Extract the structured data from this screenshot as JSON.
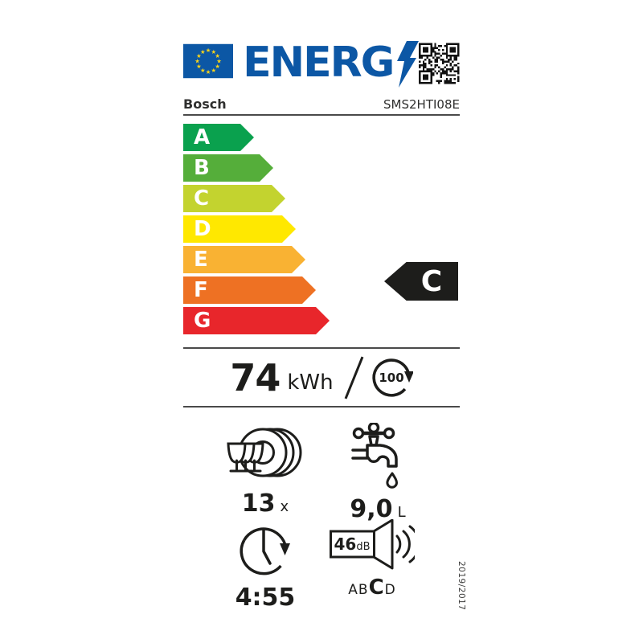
{
  "header": {
    "logo_text": "ENERG",
    "brand": "Bosch",
    "model": "SMS2HTI08E"
  },
  "colors": {
    "eu_blue": "#0c57a5",
    "star_yellow": "#ffd617",
    "indicator_black": "#1d1d1b",
    "text": "#1d1d1b"
  },
  "scale": {
    "grades": [
      {
        "letter": "A",
        "color": "#0aa14e"
      },
      {
        "letter": "B",
        "color": "#55ae3a"
      },
      {
        "letter": "C",
        "color": "#c3d32f"
      },
      {
        "letter": "D",
        "color": "#ffe800"
      },
      {
        "letter": "E",
        "color": "#f9b233"
      },
      {
        "letter": "F",
        "color": "#ee7123"
      },
      {
        "letter": "G",
        "color": "#e8262b"
      }
    ],
    "rating": "C"
  },
  "energy": {
    "value": "74",
    "unit": "kWh",
    "per_cycles": "100"
  },
  "capacity": {
    "value": "13",
    "unit": "x"
  },
  "water": {
    "value": "9,0",
    "unit": "L"
  },
  "duration": {
    "value": "4:55"
  },
  "noise": {
    "value": "46",
    "unit": "dB",
    "class_scale": [
      "A",
      "B",
      "C",
      "D"
    ],
    "noise_class": "C"
  },
  "regulation": "2019/2017"
}
